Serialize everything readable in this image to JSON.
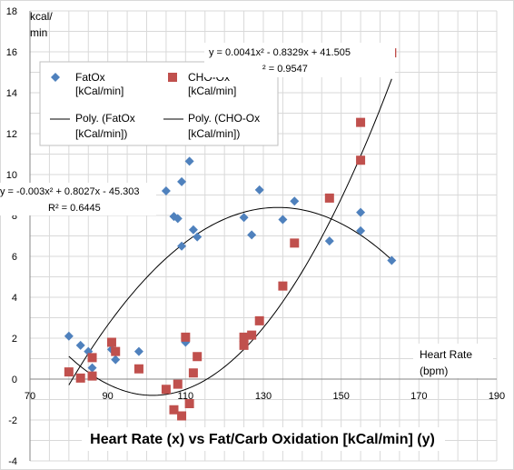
{
  "chart_data": {
    "type": "scatter",
    "title": "Heart Rate (x) vs Fat/Carb Oxidation [kCal/min] (y)",
    "xlabel": "Heart Rate (bpm)",
    "ylabel": "kcal/min",
    "xlim": [
      70,
      190
    ],
    "ylim": [
      -4,
      18
    ],
    "xticks": [
      70,
      90,
      110,
      130,
      150,
      170,
      190
    ],
    "yticks": [
      -4,
      -2,
      0,
      2,
      4,
      6,
      8,
      10,
      12,
      14,
      16,
      18
    ],
    "grid": true,
    "legend_position": "top-left",
    "series": [
      {
        "name": "FatOx [kCal/min]",
        "marker": "diamond",
        "color": "#4f81bd",
        "points": [
          [
            80,
            2.1
          ],
          [
            83,
            1.65
          ],
          [
            85,
            1.35
          ],
          [
            86,
            0.55
          ],
          [
            91,
            1.45
          ],
          [
            92,
            0.95
          ],
          [
            98,
            1.35
          ],
          [
            105,
            9.2
          ],
          [
            107,
            7.95
          ],
          [
            108,
            7.85
          ],
          [
            109,
            9.65
          ],
          [
            109,
            6.5
          ],
          [
            110,
            1.8
          ],
          [
            111,
            10.65
          ],
          [
            112,
            7.3
          ],
          [
            113,
            6.95
          ],
          [
            125,
            7.9
          ],
          [
            127,
            7.05
          ],
          [
            129,
            9.25
          ],
          [
            135,
            7.8
          ],
          [
            138,
            8.7
          ],
          [
            147,
            6.75
          ],
          [
            155,
            7.25
          ],
          [
            155,
            8.15
          ],
          [
            163,
            5.8
          ]
        ]
      },
      {
        "name": "CHO-Ox [kCal/min]",
        "marker": "square",
        "color": "#c0504d",
        "points": [
          [
            80,
            0.35
          ],
          [
            83,
            0.05
          ],
          [
            86,
            0.15
          ],
          [
            86,
            1.05
          ],
          [
            91,
            1.8
          ],
          [
            92,
            1.35
          ],
          [
            98,
            0.5
          ],
          [
            105,
            -0.5
          ],
          [
            107,
            -1.5
          ],
          [
            108,
            -0.25
          ],
          [
            109,
            -1.8
          ],
          [
            110,
            2.05
          ],
          [
            111,
            -1.2
          ],
          [
            112,
            0.3
          ],
          [
            113,
            1.1
          ],
          [
            125,
            1.65
          ],
          [
            125,
            2.05
          ],
          [
            127,
            2.15
          ],
          [
            129,
            2.85
          ],
          [
            135,
            4.55
          ],
          [
            138,
            6.65
          ],
          [
            147,
            8.85
          ],
          [
            155,
            12.55
          ],
          [
            155,
            10.7
          ],
          [
            163,
            15.95
          ]
        ]
      }
    ],
    "trendlines": [
      {
        "name": "Poly. (FatOx [kCal/min])",
        "coefficients": [
          -0.003,
          0.8027,
          -45.303
        ],
        "equation": "y = -0.003x² + 0.8027x - 45.303",
        "r2_label": "R² = 0.6445"
      },
      {
        "name": "Poly. (CHO-Ox [kCal/min])",
        "coefficients": [
          0.0041,
          -0.8329,
          41.505
        ],
        "equation": "y = 0.0041x² - 0.8329x + 41.505",
        "r2_label": "² = 0.9547"
      }
    ],
    "y_axis_title": [
      "kcal/",
      "min"
    ],
    "x_axis_title": [
      "Heart Rate",
      "(bpm)"
    ]
  }
}
